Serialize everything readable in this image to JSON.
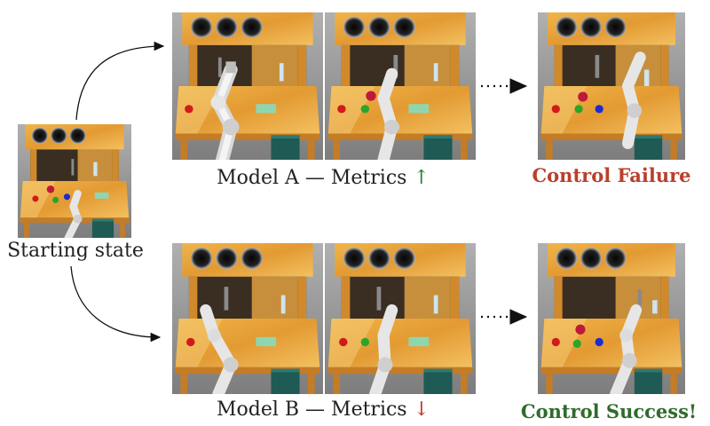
{
  "start": {
    "caption": "Starting state"
  },
  "rows": [
    {
      "caption_model": "Model A",
      "caption_sep": " — ",
      "caption_metrics": "Metrics ",
      "arrow_glyph": "↑",
      "arrow_color": "#2e7d32",
      "outcome": "Control Failure",
      "outcome_color": "#b9402d"
    },
    {
      "caption_model": "Model B",
      "caption_sep": " — ",
      "caption_metrics": "Metrics ",
      "arrow_glyph": "↓",
      "arrow_color": "#c0392b",
      "outcome": "Control Success!",
      "outcome_color": "#2f6b2b"
    }
  ],
  "palette": {
    "wood": "#e9a63a",
    "wood_dark": "#c9822a",
    "cabinet_dark": "#3a2e22",
    "floor": "#9a9a9a",
    "bin": "#1f5a55",
    "robot": "#e8e8e8",
    "obj_red": "#d11a1a",
    "obj_green": "#2aa52a",
    "obj_blue": "#1a2bd1",
    "obj_mint": "#8fd6b0"
  }
}
